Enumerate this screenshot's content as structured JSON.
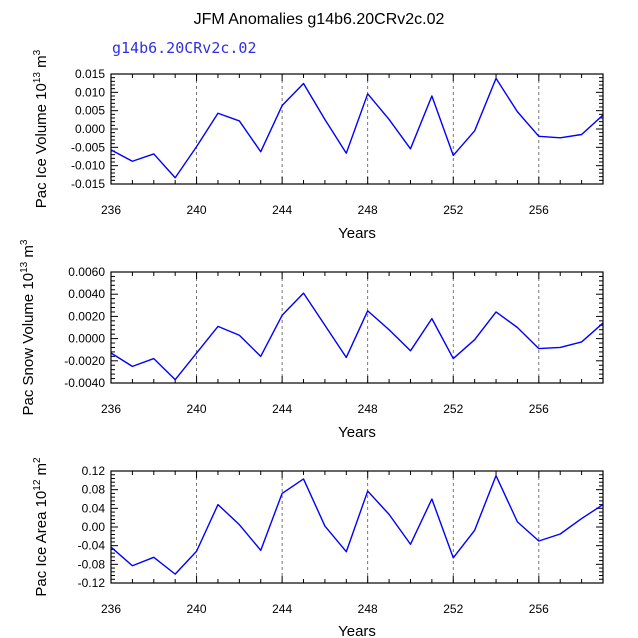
{
  "chart_data": {
    "title": "JFM Anomalies g14b6.20CRv2c.02",
    "subtitle": "g14b6.20CRv2c.02",
    "line_color": "#0000ff",
    "panels": [
      {
        "type": "line",
        "ylabel_main": "Pac Ice Volume 10",
        "ylabel_exp": "13",
        "ylabel_unit_base": " m",
        "ylabel_unit_exp": "3",
        "xlabel": "Years",
        "xlim": [
          236,
          259
        ],
        "ylim": [
          -0.015,
          0.015
        ],
        "xticks": [
          "236",
          "240",
          "244",
          "248",
          "252",
          "256"
        ],
        "yticks": [
          "-0.015",
          "-0.010",
          "-0.005",
          "0.000",
          "0.005",
          "0.010",
          "0.015"
        ],
        "x": [
          236,
          237,
          238,
          239,
          240,
          241,
          242,
          243,
          244,
          245,
          246,
          247,
          248,
          249,
          250,
          251,
          252,
          253,
          254,
          255,
          256,
          257,
          258,
          259
        ],
        "values": [
          -0.0057,
          -0.0088,
          -0.0068,
          -0.0133,
          -0.0048,
          0.0043,
          0.0022,
          -0.0062,
          0.0064,
          0.0124,
          0.0026,
          -0.0066,
          0.0096,
          0.0026,
          -0.0054,
          0.009,
          -0.0072,
          -0.0005,
          0.0138,
          0.0047,
          -0.002,
          -0.0024,
          -0.0015,
          0.0038
        ]
      },
      {
        "type": "line",
        "ylabel_main": "Pac Snow Volume 10",
        "ylabel_exp": "13",
        "ylabel_unit_base": " m",
        "ylabel_unit_exp": "3",
        "xlabel": "Years",
        "xlim": [
          236,
          259
        ],
        "ylim": [
          -0.004,
          0.006
        ],
        "xticks": [
          "236",
          "240",
          "244",
          "248",
          "252",
          "256"
        ],
        "yticks": [
          "-0.0040",
          "-0.0020",
          "0.0000",
          "0.0020",
          "0.0040",
          "0.0060"
        ],
        "x": [
          236,
          237,
          238,
          239,
          240,
          241,
          242,
          243,
          244,
          245,
          246,
          247,
          248,
          249,
          250,
          251,
          252,
          253,
          254,
          255,
          256,
          257,
          258,
          259
        ],
        "values": [
          -0.0013,
          -0.0025,
          -0.0018,
          -0.0037,
          -0.0013,
          0.0011,
          0.0003,
          -0.0016,
          0.0021,
          0.0041,
          0.0012,
          -0.0017,
          0.0025,
          0.0008,
          -0.0011,
          0.0018,
          -0.0018,
          -0.0001,
          0.0024,
          0.001,
          -0.0009,
          -0.0008,
          -0.0003,
          0.0014
        ]
      },
      {
        "type": "line",
        "ylabel_main": "Pac Ice Area 10",
        "ylabel_exp": "12",
        "ylabel_unit_base": " m",
        "ylabel_unit_exp": "2",
        "xlabel": "Years",
        "xlim": [
          236,
          259
        ],
        "ylim": [
          -0.12,
          0.12
        ],
        "xticks": [
          "236",
          "240",
          "244",
          "248",
          "252",
          "256"
        ],
        "yticks": [
          "-0.12",
          "-0.08",
          "-0.04",
          "0.00",
          "0.04",
          "0.08",
          "0.12"
        ],
        "x": [
          236,
          237,
          238,
          239,
          240,
          241,
          242,
          243,
          244,
          245,
          246,
          247,
          248,
          249,
          250,
          251,
          252,
          253,
          254,
          255,
          256,
          257,
          258,
          259
        ],
        "values": [
          -0.043,
          -0.083,
          -0.065,
          -0.101,
          -0.052,
          0.048,
          0.005,
          -0.05,
          0.072,
          0.103,
          0.002,
          -0.053,
          0.077,
          0.027,
          -0.037,
          0.06,
          -0.066,
          -0.007,
          0.11,
          0.011,
          -0.03,
          -0.015,
          0.018,
          0.048
        ]
      }
    ]
  }
}
